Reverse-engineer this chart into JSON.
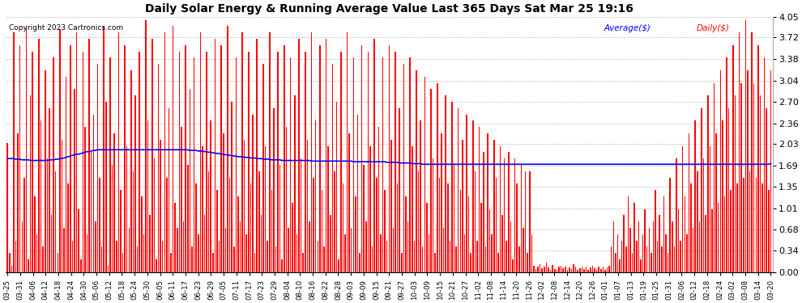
{
  "title": "Daily Solar Energy & Running Average Value Last 365 Days Sat Mar 25 19:16",
  "copyright": "Copyright 2023 Cartronics.com",
  "legend_avg": "Average($)",
  "legend_daily": "Daily($)",
  "bar_color": "#ff0000",
  "avg_line_color": "#0000ff",
  "background_color": "#ffffff",
  "plot_bg_color": "#ffffff",
  "grid_color": "#bbbbbb",
  "ylim": [
    0.0,
    4.05
  ],
  "yticks": [
    0.0,
    0.34,
    0.68,
    1.01,
    1.35,
    1.69,
    2.03,
    2.36,
    2.7,
    3.04,
    3.38,
    3.72,
    4.05
  ],
  "x_labels": [
    "03-25",
    "03-31",
    "04-06",
    "04-12",
    "04-18",
    "04-24",
    "04-30",
    "05-06",
    "05-12",
    "05-18",
    "05-24",
    "05-30",
    "06-05",
    "06-11",
    "06-17",
    "06-23",
    "06-29",
    "07-05",
    "07-11",
    "07-17",
    "07-23",
    "07-29",
    "08-04",
    "08-10",
    "08-16",
    "08-22",
    "08-28",
    "09-03",
    "09-09",
    "09-15",
    "09-21",
    "09-27",
    "10-03",
    "10-09",
    "10-15",
    "10-21",
    "10-27",
    "11-02",
    "11-08",
    "11-14",
    "11-20",
    "11-26",
    "12-02",
    "12-08",
    "12-14",
    "12-20",
    "12-26",
    "01-01",
    "01-07",
    "01-13",
    "01-19",
    "01-25",
    "01-31",
    "02-06",
    "02-12",
    "02-18",
    "02-24",
    "03-02",
    "03-08",
    "03-14",
    "03-20"
  ],
  "num_bars": 365,
  "avg_line": [
    1.8,
    1.8,
    1.8,
    1.8,
    1.79,
    1.79,
    1.79,
    1.78,
    1.78,
    1.78,
    1.78,
    1.77,
    1.77,
    1.77,
    1.77,
    1.77,
    1.77,
    1.77,
    1.77,
    1.77,
    1.78,
    1.78,
    1.78,
    1.79,
    1.79,
    1.8,
    1.8,
    1.81,
    1.82,
    1.83,
    1.84,
    1.85,
    1.86,
    1.87,
    1.87,
    1.88,
    1.89,
    1.9,
    1.91,
    1.91,
    1.92,
    1.93,
    1.93,
    1.94,
    1.94,
    1.94,
    1.94,
    1.94,
    1.94,
    1.94,
    1.94,
    1.94,
    1.94,
    1.94,
    1.94,
    1.94,
    1.94,
    1.94,
    1.94,
    1.94,
    1.94,
    1.94,
    1.94,
    1.94,
    1.94,
    1.94,
    1.94,
    1.94,
    1.94,
    1.94,
    1.94,
    1.94,
    1.94,
    1.94,
    1.94,
    1.94,
    1.94,
    1.94,
    1.94,
    1.94,
    1.94,
    1.94,
    1.94,
    1.94,
    1.94,
    1.94,
    1.94,
    1.93,
    1.93,
    1.93,
    1.93,
    1.92,
    1.92,
    1.92,
    1.91,
    1.91,
    1.9,
    1.9,
    1.89,
    1.89,
    1.88,
    1.88,
    1.87,
    1.87,
    1.86,
    1.86,
    1.85,
    1.85,
    1.84,
    1.84,
    1.83,
    1.83,
    1.83,
    1.82,
    1.82,
    1.82,
    1.81,
    1.81,
    1.81,
    1.8,
    1.8,
    1.8,
    1.79,
    1.79,
    1.79,
    1.79,
    1.78,
    1.78,
    1.78,
    1.78,
    1.78,
    1.77,
    1.77,
    1.77,
    1.77,
    1.77,
    1.77,
    1.77,
    1.77,
    1.77,
    1.77,
    1.77,
    1.77,
    1.77,
    1.77,
    1.76,
    1.76,
    1.76,
    1.76,
    1.76,
    1.76,
    1.76,
    1.76,
    1.76,
    1.76,
    1.76,
    1.76,
    1.76,
    1.76,
    1.76,
    1.76,
    1.76,
    1.76,
    1.76,
    1.76,
    1.75,
    1.75,
    1.75,
    1.75,
    1.75,
    1.75,
    1.75,
    1.75,
    1.75,
    1.75,
    1.75,
    1.75,
    1.75,
    1.75,
    1.75,
    1.75,
    1.74,
    1.74,
    1.74,
    1.74,
    1.74,
    1.74,
    1.73,
    1.73,
    1.73,
    1.73,
    1.73,
    1.73,
    1.72,
    1.72,
    1.72,
    1.72,
    1.72,
    1.71,
    1.71,
    1.71,
    1.71,
    1.71,
    1.71,
    1.71,
    1.71,
    1.71,
    1.71,
    1.71,
    1.71,
    1.71,
    1.71,
    1.71,
    1.71,
    1.71,
    1.71,
    1.71,
    1.71,
    1.71,
    1.71,
    1.71,
    1.71,
    1.71,
    1.71,
    1.71,
    1.71,
    1.71,
    1.71,
    1.71,
    1.71,
    1.71,
    1.71,
    1.71,
    1.71,
    1.71,
    1.71,
    1.71,
    1.71,
    1.71,
    1.71,
    1.71,
    1.71,
    1.71,
    1.71,
    1.71,
    1.71,
    1.71,
    1.71,
    1.71,
    1.71,
    1.71,
    1.71,
    1.71,
    1.71,
    1.71,
    1.71,
    1.71,
    1.71,
    1.71,
    1.71,
    1.71,
    1.71,
    1.71,
    1.71,
    1.71,
    1.71,
    1.71,
    1.71,
    1.71,
    1.71,
    1.71,
    1.71,
    1.71,
    1.71,
    1.71,
    1.71,
    1.71,
    1.71,
    1.71,
    1.71,
    1.71,
    1.71,
    1.71,
    1.71,
    1.71,
    1.71,
    1.71,
    1.71,
    1.71,
    1.71,
    1.71,
    1.71,
    1.71,
    1.71,
    1.71,
    1.71,
    1.71,
    1.71,
    1.71,
    1.71,
    1.71,
    1.71,
    1.71,
    1.71,
    1.71,
    1.71,
    1.71,
    1.71,
    1.71,
    1.71,
    1.71,
    1.71,
    1.71,
    1.71,
    1.71,
    1.71,
    1.71,
    1.71,
    1.71,
    1.71,
    1.71,
    1.71,
    1.71,
    1.71,
    1.71,
    1.71,
    1.71,
    1.71,
    1.71,
    1.71,
    1.71,
    1.71,
    1.71,
    1.71,
    1.71,
    1.71,
    1.71,
    1.71,
    1.71,
    1.71,
    1.71,
    1.71,
    1.71,
    1.71,
    1.71,
    1.71,
    1.71,
    1.71,
    1.71,
    1.71,
    1.71,
    1.71,
    1.71,
    1.71,
    1.71,
    1.71,
    1.71,
    1.71,
    1.71,
    1.71,
    1.71,
    1.71,
    1.71,
    1.71,
    1.72
  ],
  "daily_values": [
    2.05,
    0.3,
    0.1,
    3.8,
    0.5,
    2.2,
    3.6,
    0.8,
    1.5,
    3.9,
    0.2,
    2.8,
    3.5,
    1.2,
    0.6,
    3.7,
    2.4,
    0.4,
    3.2,
    1.8,
    2.6,
    0.9,
    3.4,
    1.6,
    0.3,
    3.85,
    2.1,
    0.7,
    3.1,
    1.4,
    3.6,
    0.5,
    2.9,
    3.8,
    1.0,
    0.2,
    3.5,
    2.3,
    0.6,
    3.7,
    1.9,
    2.5,
    0.8,
    3.3,
    1.5,
    0.4,
    3.9,
    2.7,
    0.1,
    3.4,
    1.7,
    2.2,
    0.5,
    3.8,
    1.3,
    0.3,
    3.6,
    2.0,
    0.7,
    3.2,
    1.6,
    2.8,
    0.4,
    3.5,
    1.2,
    0.6,
    4.0,
    2.4,
    0.9,
    3.7,
    1.8,
    0.2,
    3.3,
    2.1,
    0.5,
    3.8,
    1.5,
    2.6,
    0.3,
    3.9,
    1.1,
    0.7,
    3.5,
    2.3,
    0.8,
    3.6,
    1.7,
    2.9,
    0.4,
    3.4,
    1.4,
    0.6,
    3.8,
    2.0,
    0.9,
    3.5,
    1.6,
    2.4,
    0.3,
    3.7,
    1.3,
    0.5,
    3.6,
    2.2,
    0.7,
    3.9,
    1.5,
    2.7,
    0.4,
    3.4,
    1.2,
    0.8,
    3.8,
    2.1,
    0.6,
    3.5,
    1.4,
    2.5,
    0.3,
    3.7,
    1.6,
    0.9,
    3.3,
    2.0,
    0.5,
    3.8,
    1.3,
    2.6,
    0.4,
    3.5,
    1.7,
    0.2,
    3.6,
    2.3,
    0.7,
    3.4,
    1.1,
    2.8,
    0.6,
    3.7,
    1.8,
    0.3,
    3.5,
    2.1,
    0.8,
    3.8,
    1.5,
    2.4,
    0.5,
    3.6,
    1.3,
    0.4,
    3.7,
    2.0,
    0.9,
    3.3,
    1.6,
    2.7,
    0.2,
    3.5,
    1.4,
    0.6,
    3.8,
    2.2,
    0.7,
    3.4,
    1.2,
    2.5,
    0.3,
    3.6,
    1.7,
    0.8,
    3.5,
    2.0,
    0.4,
    3.7,
    1.5,
    2.3,
    0.6,
    3.4,
    1.3,
    0.5,
    3.6,
    2.1,
    0.7,
    3.5,
    1.4,
    2.6,
    0.3,
    3.3,
    1.2,
    0.8,
    3.4,
    2.0,
    0.5,
    3.2,
    1.6,
    2.4,
    0.4,
    3.1,
    1.1,
    0.6,
    2.9,
    1.8,
    0.3,
    3.0,
    1.5,
    2.2,
    0.7,
    2.8,
    1.4,
    0.5,
    2.7,
    1.7,
    0.4,
    2.6,
    1.3,
    2.1,
    0.6,
    2.5,
    1.2,
    0.3,
    2.4,
    1.6,
    0.5,
    2.3,
    1.1,
    1.9,
    0.4,
    2.2,
    1.0,
    0.6,
    2.1,
    1.5,
    0.3,
    2.0,
    0.9,
    1.8,
    0.5,
    1.9,
    0.8,
    0.2,
    1.8,
    1.4,
    0.4,
    1.7,
    0.7,
    1.6,
    0.3,
    1.6,
    0.6,
    0.1,
    0.05,
    0.08,
    0.12,
    0.06,
    0.09,
    0.15,
    0.07,
    0.04,
    0.11,
    0.05,
    0.03,
    0.08,
    0.1,
    0.06,
    0.09,
    0.04,
    0.07,
    0.05,
    0.12,
    0.08,
    0.03,
    0.06,
    0.09,
    0.05,
    0.08,
    0.04,
    0.07,
    0.1,
    0.06,
    0.03,
    0.09,
    0.05,
    0.08,
    0.04,
    0.07,
    0.1,
    0.4,
    0.8,
    0.3,
    0.6,
    0.2,
    0.5,
    0.9,
    0.4,
    1.2,
    0.7,
    0.3,
    1.1,
    0.5,
    0.8,
    0.2,
    0.6,
    1.0,
    0.4,
    0.7,
    0.3,
    0.8,
    1.3,
    0.5,
    0.9,
    0.4,
    1.2,
    0.6,
    0.3,
    1.5,
    0.8,
    0.4,
    1.8,
    1.0,
    0.5,
    2.0,
    1.2,
    0.6,
    2.2,
    1.4,
    0.7,
    2.4,
    1.6,
    0.8,
    2.6,
    1.8,
    0.9,
    2.8,
    2.0,
    1.0,
    3.0,
    2.2,
    1.1,
    3.2,
    2.4,
    1.2,
    3.4,
    2.6,
    1.3,
    3.6,
    2.8,
    1.4,
    3.8,
    3.0,
    1.5,
    4.0,
    3.2,
    1.6,
    3.8,
    3.0,
    1.5,
    3.6,
    2.8,
    1.4,
    3.4,
    2.6,
    1.3,
    3.2
  ]
}
